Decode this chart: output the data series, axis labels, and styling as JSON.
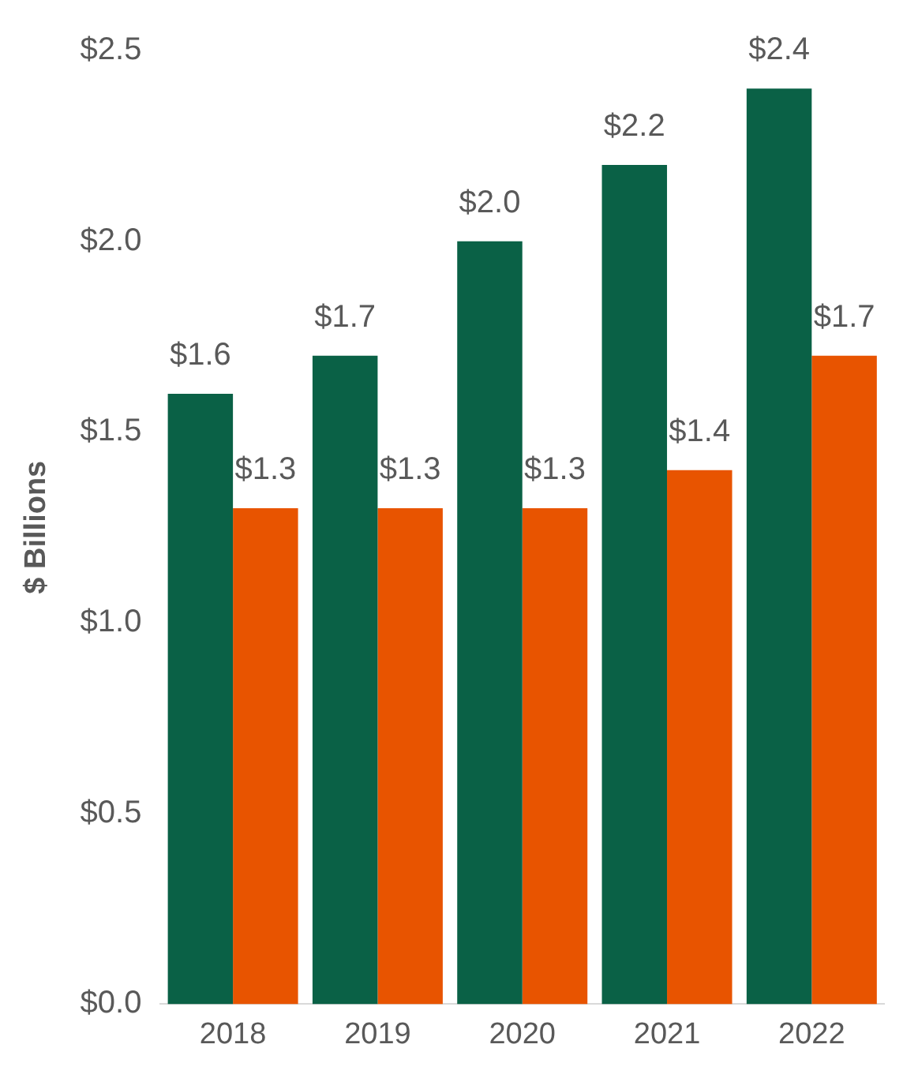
{
  "chart_data": {
    "type": "bar",
    "ylabel": "$ Billions",
    "categories": [
      "2018",
      "2019",
      "2020",
      "2021",
      "2022"
    ],
    "series": [
      {
        "color": "#0a6146",
        "values": [
          1.6,
          1.7,
          2.0,
          2.2,
          2.4
        ],
        "value_labels": [
          "$1.6",
          "$1.7",
          "$2.0",
          "$2.2",
          "$2.4"
        ]
      },
      {
        "color": "#e85400",
        "values": [
          1.3,
          1.3,
          1.3,
          1.4,
          1.7
        ],
        "value_labels": [
          "$1.3",
          "$1.3",
          "$1.3",
          "$1.4",
          "$1.7"
        ]
      }
    ],
    "ylim": [
      0,
      2.5
    ],
    "yticks": [
      {
        "value": 0,
        "label": "$0.0"
      },
      {
        "value": 0.5,
        "label": "$0.5"
      },
      {
        "value": 1,
        "label": "$1.0"
      },
      {
        "value": 1.5,
        "label": "$1.5"
      },
      {
        "value": 2,
        "label": "$2.0"
      },
      {
        "value": 2.5,
        "label": "$2.5"
      }
    ],
    "grid": false,
    "legend": false
  }
}
